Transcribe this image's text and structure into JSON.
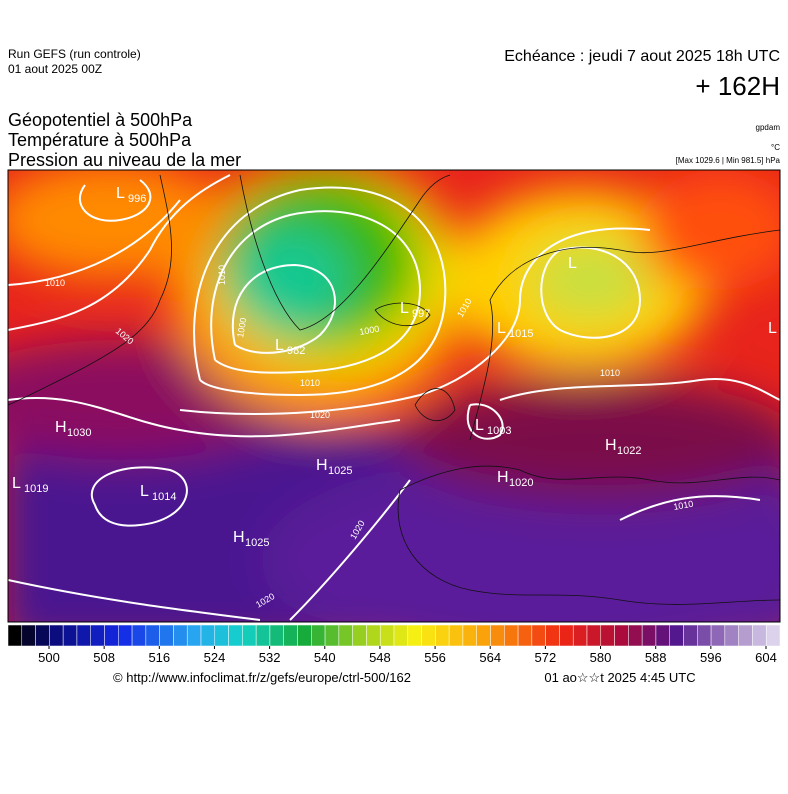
{
  "header": {
    "run": "Run GEFS (run controle)",
    "run_date": "01 aout 2025 00Z",
    "echeance": "Echéance : jeudi 7 aout 2025 18h UTC",
    "lead": "+ 162H"
  },
  "titles": [
    "Géopotentiel à 500hPa",
    "Température à 500hPa",
    "Pression au niveau de la mer"
  ],
  "units": [
    "gpdam",
    "°C",
    "[Max 1029.6 | Min 981.5] hPa"
  ],
  "pressure_centers": [
    {
      "letter": "L",
      "value": "996"
    },
    {
      "letter": "H",
      "value": "1030"
    },
    {
      "letter": "L",
      "value": "1019"
    },
    {
      "letter": "L",
      "value": "1014"
    },
    {
      "letter": "H",
      "value": "1025"
    },
    {
      "letter": "H",
      "value": "1025"
    },
    {
      "letter": "L",
      "value": "982"
    },
    {
      "letter": "L",
      "value": "997"
    },
    {
      "letter": "L",
      "value": "1015"
    },
    {
      "letter": "L",
      "value": "1003"
    },
    {
      "letter": "H",
      "value": "1022"
    },
    {
      "letter": "H",
      "value": "1020"
    },
    {
      "letter": "L"
    },
    {
      "letter": "L"
    }
  ],
  "contour_labels": [
    "1010",
    "1020",
    "1010",
    "1000",
    "1000",
    "1010",
    "1020",
    "1020",
    "1020",
    "1010",
    "1010",
    "1010"
  ],
  "colorbar": {
    "ticks": [
      500,
      508,
      516,
      524,
      532,
      540,
      548,
      556,
      564,
      572,
      580,
      588,
      596,
      604
    ]
  },
  "footer": {
    "url": "© http://www.infoclimat.fr/z/gefs/europe/ctrl-500/162",
    "time": "01 ao☆☆t 2025  4:45 UTC"
  }
}
